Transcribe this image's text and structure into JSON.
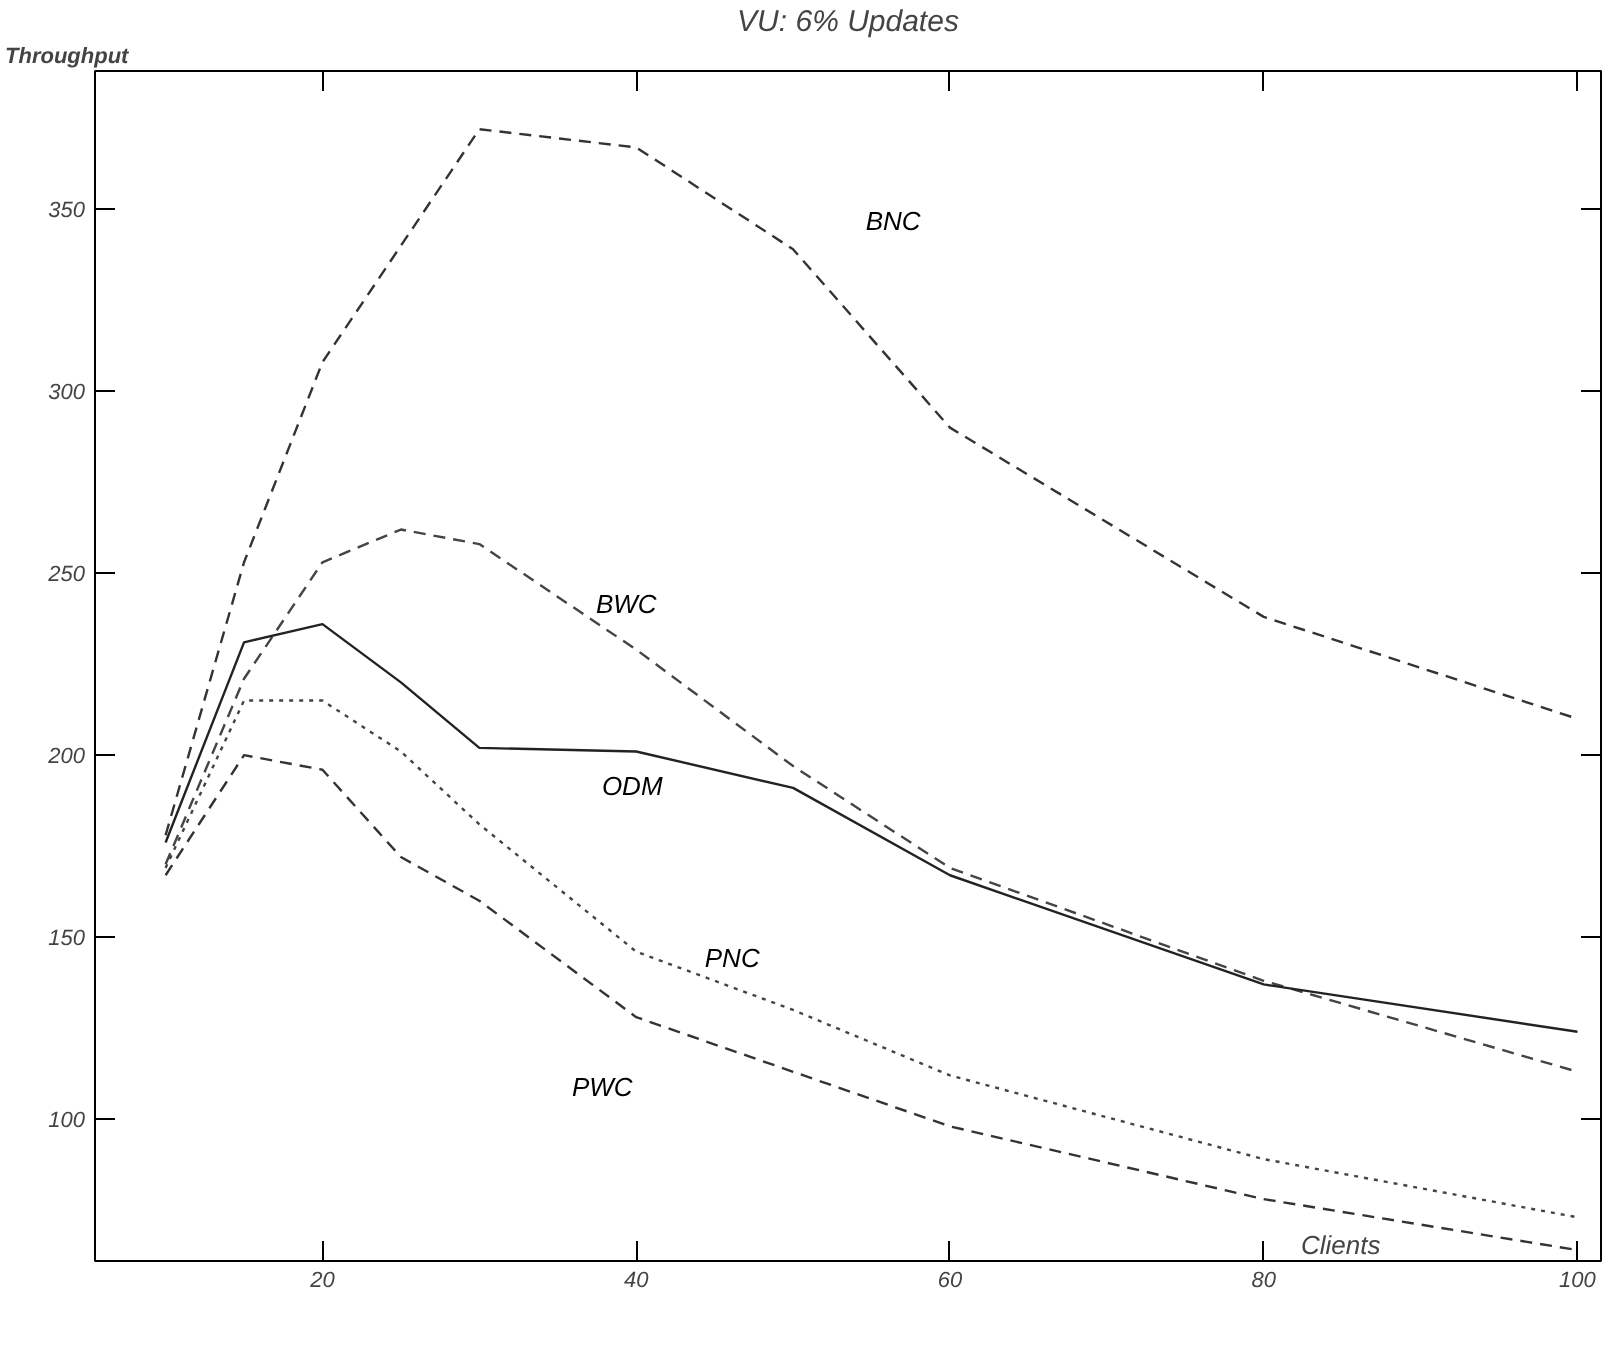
{
  "chart_data": {
    "type": "line",
    "title": "VU: 6% Updates",
    "xlabel": "Clients",
    "ylabel": "Throughput",
    "x": [
      10,
      15,
      20,
      25,
      30,
      40,
      50,
      60,
      80,
      100
    ],
    "xlim": [
      5.5,
      101.5
    ],
    "ylim": [
      61,
      388
    ],
    "xticks": [
      20,
      40,
      60,
      80,
      100
    ],
    "yticks": [
      100,
      150,
      200,
      250,
      300,
      350
    ],
    "grid": false,
    "marker": "none",
    "series": [
      {
        "name": "BNC",
        "color": "#333333",
        "line_style": "dashed",
        "values": [
          178,
          253,
          308,
          340,
          372,
          367,
          339,
          290,
          238,
          210
        ]
      },
      {
        "name": "BWC",
        "color": "#444444",
        "line_style": "dashed",
        "values": [
          170,
          221,
          253,
          262,
          258,
          229,
          197,
          169,
          138,
          113
        ]
      },
      {
        "name": "ODM",
        "color": "#222222",
        "line_style": "solid",
        "values": [
          176,
          231,
          236,
          220,
          202,
          201,
          191,
          167,
          137,
          124
        ]
      },
      {
        "name": "PNC",
        "color": "#444444",
        "line_style": "dotted",
        "values": [
          169,
          215,
          215,
          201,
          181,
          146,
          130,
          112,
          89,
          73
        ]
      },
      {
        "name": "PWC",
        "color": "#333333",
        "line_style": "dashed",
        "values": [
          167,
          200,
          196,
          172,
          160,
          128,
          113,
          98,
          78,
          64
        ]
      }
    ]
  }
}
